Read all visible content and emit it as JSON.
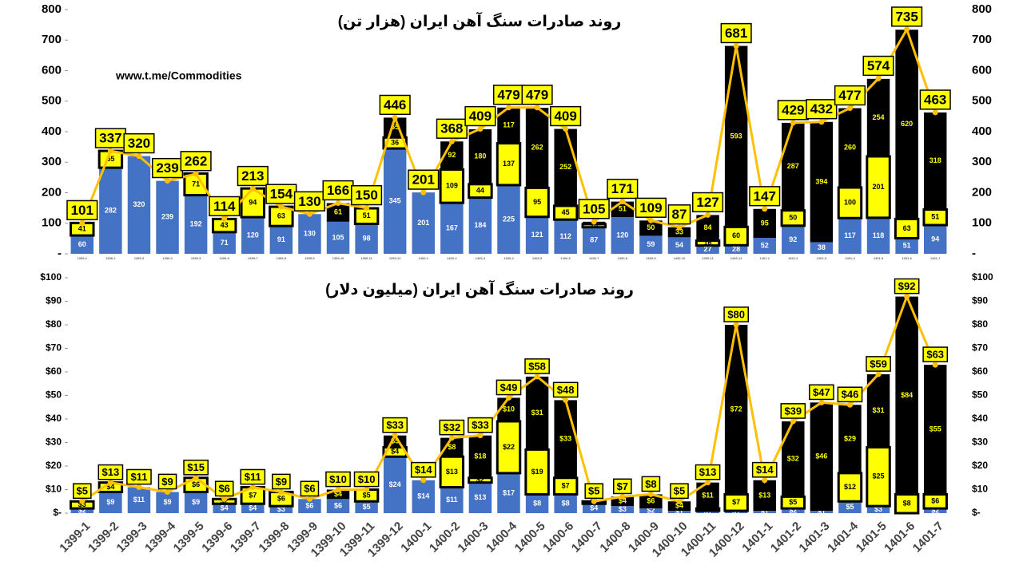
{
  "chart_data": [
    {
      "type": "bar",
      "title": "روند صادرات سنگ آهن ایران (هزار تن)",
      "annotation": "www.t.me/Commodities",
      "categories": [
        "1399-1",
        "1399-2",
        "1399-3",
        "1399-4",
        "1399-5",
        "1399-6",
        "1399-7",
        "1399-8",
        "1399-9",
        "1399-10",
        "1399-11",
        "1399-12",
        "1400-1",
        "1400-2",
        "1400-3",
        "1400-4",
        "1400-5",
        "1400-6",
        "1400-7",
        "1400-8",
        "1400-9",
        "1400-10",
        "1400-11",
        "1400-12",
        "1401-1",
        "1401-2",
        "1401-3",
        "1401-4",
        "1401-5",
        "1401-6",
        "1401-7"
      ],
      "ylim": [
        0,
        800
      ],
      "yticks": [
        {
          "value": 0,
          "label": "-"
        },
        100,
        200,
        300,
        400,
        500,
        600,
        700,
        800
      ],
      "series": [
        {
          "color": "#4472c4",
          "values": [
            60,
            282,
            320,
            239,
            192,
            71,
            120,
            91,
            130,
            105,
            98,
            345,
            201,
            167,
            184,
            225,
            121,
            112,
            87,
            120,
            59,
            54,
            27,
            28,
            52,
            92,
            38,
            117,
            118,
            51,
            94
          ]
        },
        {
          "color": "#ffff00",
          "values": [
            41,
            55,
            null,
            null,
            71,
            43,
            94,
            63,
            null,
            null,
            51,
            36,
            null,
            109,
            44,
            137,
            95,
            45,
            10,
            null,
            null,
            null,
            16,
            60,
            null,
            50,
            null,
            100,
            201,
            63,
            51
          ]
        },
        {
          "color": "#000000",
          "values": [
            null,
            null,
            null,
            null,
            null,
            null,
            null,
            null,
            null,
            61,
            null,
            65,
            null,
            92,
            180,
            117,
            262,
            252,
            8,
            51,
            50,
            33,
            84,
            593,
            95,
            287,
            394,
            260,
            254,
            620,
            318
          ]
        },
        {
          "type": "line",
          "color": "#ffc000",
          "values": [
            101,
            337,
            320,
            239,
            262,
            114,
            213,
            154,
            130,
            166,
            150,
            446,
            201,
            368,
            409,
            479,
            479,
            409,
            105,
            171,
            109,
            87,
            127,
            681,
            147,
            429,
            432,
            477,
            574,
            735,
            463
          ]
        }
      ]
    },
    {
      "type": "bar",
      "title": "روند صادرات سنگ آهن ایران (میلیون دلار)",
      "categories": [
        "1399-1",
        "1399-2",
        "1399-3",
        "1399-4",
        "1399-5",
        "1399-6",
        "1399-7",
        "1399-8",
        "1399-9",
        "1399-10",
        "1399-11",
        "1399-12",
        "1400-1",
        "1400-2",
        "1400-3",
        "1400-4",
        "1400-5",
        "1400-6",
        "1400-7",
        "1400-8",
        "1400-9",
        "1400-10",
        "1400-11",
        "1400-12",
        "1401-1",
        "1401-2",
        "1401-3",
        "1401-4",
        "1401-5",
        "1401-6",
        "1401-7"
      ],
      "ylim": [
        0,
        100
      ],
      "yticks": [
        {
          "value": 0,
          "label": "$-"
        },
        {
          "value": 10,
          "label": "$10"
        },
        {
          "value": 20,
          "label": "$20"
        },
        {
          "value": 30,
          "label": "$30"
        },
        {
          "value": 40,
          "label": "$40"
        },
        {
          "value": 50,
          "label": "$50"
        },
        {
          "value": 60,
          "label": "$60"
        },
        {
          "value": 70,
          "label": "$70"
        },
        {
          "value": 80,
          "label": "$80"
        },
        {
          "value": 90,
          "label": "$90"
        },
        {
          "value": 100,
          "label": "$100"
        }
      ],
      "series": [
        {
          "color": "#4472c4",
          "values": [
            2,
            9,
            11,
            9,
            9,
            4,
            4,
            3,
            6,
            6,
            5,
            24,
            14,
            11,
            13,
            17,
            8,
            8,
            4,
            3,
            2,
            1,
            1,
            1,
            1,
            2,
            1,
            5,
            3,
            0,
            2
          ],
          "value_labels": [
            "$2",
            "$9",
            "$11",
            "$9",
            "$9",
            "$4",
            "$4",
            "$3",
            "$6",
            "$6",
            "$5",
            "$24",
            "$14",
            "$11",
            "$13",
            "$17",
            "$8",
            "$8",
            "$4",
            "$3",
            "$2",
            "$1",
            "$1",
            "$1",
            "$1",
            "$2",
            "$1",
            "$5",
            "$3",
            "$0",
            "$2"
          ]
        },
        {
          "color": "#ffff00",
          "values": [
            3,
            4,
            null,
            null,
            6,
            2,
            7,
            6,
            null,
            null,
            5,
            4,
            null,
            13,
            2,
            22,
            19,
            7,
            1,
            null,
            null,
            null,
            1,
            7,
            null,
            5,
            null,
            12,
            25,
            8,
            6
          ],
          "value_labels": [
            "$3",
            "$4",
            null,
            null,
            "$6",
            "$2",
            "$7",
            "$6",
            null,
            null,
            "$5",
            "$4",
            null,
            "$13",
            "$2",
            "$22",
            "$19",
            "$7",
            "$1",
            null,
            null,
            null,
            "$1",
            "$7",
            null,
            "$5",
            null,
            "$12",
            "$25",
            "$8",
            "$6"
          ]
        },
        {
          "color": "#000000",
          "values": [
            null,
            null,
            null,
            null,
            null,
            null,
            null,
            null,
            null,
            4,
            null,
            5,
            null,
            8,
            18,
            10,
            31,
            33,
            null,
            4,
            6,
            4,
            11,
            72,
            13,
            32,
            46,
            29,
            31,
            84,
            55
          ],
          "value_labels": [
            null,
            null,
            null,
            null,
            null,
            null,
            null,
            null,
            null,
            "$4",
            null,
            "$5",
            null,
            "$8",
            "$18",
            "$10",
            "$31",
            "$33",
            null,
            "$4",
            "$6",
            "$4",
            "$11",
            "$72",
            "$13",
            "$32",
            "$46",
            "$29",
            "$31",
            "$84",
            "$55"
          ]
        },
        {
          "type": "line",
          "color": "#ffc000",
          "values": [
            5,
            13,
            11,
            9,
            15,
            6,
            11,
            9,
            6,
            10,
            10,
            33,
            14,
            32,
            33,
            49,
            58,
            48,
            5,
            7,
            8,
            5,
            13,
            80,
            14,
            39,
            47,
            46,
            59,
            92,
            63
          ],
          "value_labels": [
            "$5",
            "$13",
            "$11",
            "$9",
            "$15",
            "$6",
            "$11",
            "$9",
            "$6",
            "$10",
            "$10",
            "$33",
            "$14",
            "$32",
            "$33",
            "$49",
            "$58",
            "$48",
            "$5",
            "$7",
            "$8",
            "$5",
            "$13",
            "$80",
            "$14",
            "$39",
            "$47",
            "$46",
            "$59",
            "$92",
            "$63"
          ]
        }
      ]
    }
  ]
}
